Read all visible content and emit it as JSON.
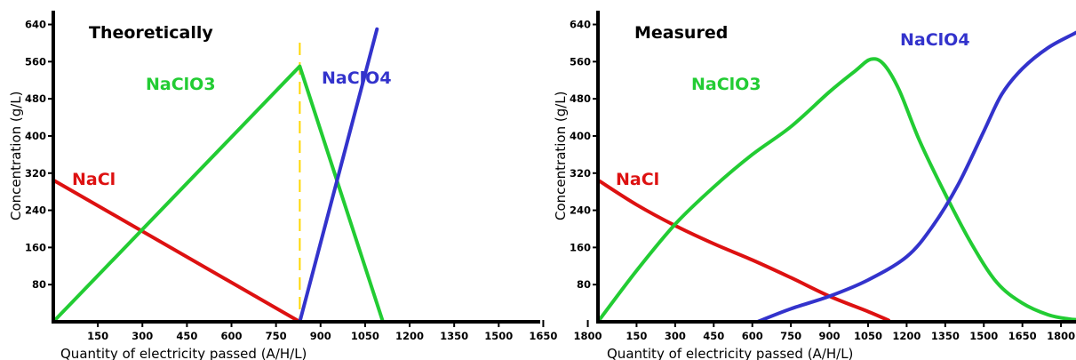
{
  "colors": {
    "nacl": "#dd1111",
    "naclo3": "#22cc33",
    "naclo4": "#3333cc",
    "marker": "#ffd700"
  },
  "chart_data": [
    {
      "type": "line",
      "title": "Theoretically",
      "xlabel": "Quantity of electricity passed (A/H/L)",
      "ylabel": "Concentration (g/L)",
      "xlim": [
        0,
        2000
      ],
      "ylim": [
        0,
        660
      ],
      "xticks": [
        "150",
        "300",
        "450",
        "600",
        "750",
        "900",
        "1050",
        "1200",
        "1350",
        "1500",
        "1650",
        "1800"
      ],
      "yticks": [
        "80",
        "160",
        "240",
        "320",
        "400",
        "480",
        "560",
        "640"
      ],
      "vline_x": 830,
      "series": [
        {
          "name": "NaCl",
          "color_key": "nacl",
          "curve": "linear",
          "x": [
            0,
            830
          ],
          "y": [
            305,
            0
          ]
        },
        {
          "name": "NaClO3",
          "color_key": "naclo3",
          "curve": "linear",
          "x": [
            0,
            830,
            1110
          ],
          "y": [
            0,
            550,
            0
          ]
        },
        {
          "name": "NaClO4",
          "color_key": "naclo4",
          "curve": "linear",
          "x": [
            830,
            1090
          ],
          "y": [
            0,
            630
          ]
        }
      ]
    },
    {
      "type": "line",
      "title": "Measured",
      "xlabel": "Quantity of electricity passed (A/H/L)",
      "ylabel": "Concentration (g/L)",
      "xlim": [
        0,
        1950
      ],
      "ylim": [
        0,
        660
      ],
      "xticks": [
        "150",
        "300",
        "450",
        "600",
        "750",
        "900",
        "1050",
        "1200",
        "1350",
        "1500",
        "1650",
        "1800"
      ],
      "yticks": [
        "80",
        "160",
        "240",
        "320",
        "400",
        "480",
        "560",
        "640"
      ],
      "series": [
        {
          "name": "NaCl",
          "color_key": "nacl",
          "curve": "smooth",
          "x": [
            0,
            150,
            300,
            450,
            600,
            750,
            900,
            1050,
            1130
          ],
          "y": [
            305,
            252,
            207,
            168,
            133,
            95,
            55,
            22,
            3
          ]
        },
        {
          "name": "NaClO3",
          "color_key": "naclo3",
          "curve": "smooth",
          "x": [
            0,
            150,
            300,
            450,
            600,
            750,
            900,
            1000,
            1060,
            1110,
            1170,
            1250,
            1350,
            1450,
            1550,
            1650,
            1750,
            1830,
            1880
          ],
          "y": [
            0,
            110,
            210,
            290,
            360,
            420,
            495,
            540,
            565,
            555,
            500,
            390,
            275,
            170,
            85,
            40,
            15,
            6,
            4
          ]
        },
        {
          "name": "NaClO4",
          "color_key": "naclo4",
          "curve": "smooth",
          "x": [
            620,
            750,
            900,
            1050,
            1200,
            1300,
            1400,
            1500,
            1570,
            1650,
            1750,
            1850,
            1940
          ],
          "y": [
            0,
            28,
            55,
            90,
            140,
            205,
            295,
            410,
            490,
            545,
            590,
            620,
            645
          ]
        }
      ]
    }
  ]
}
